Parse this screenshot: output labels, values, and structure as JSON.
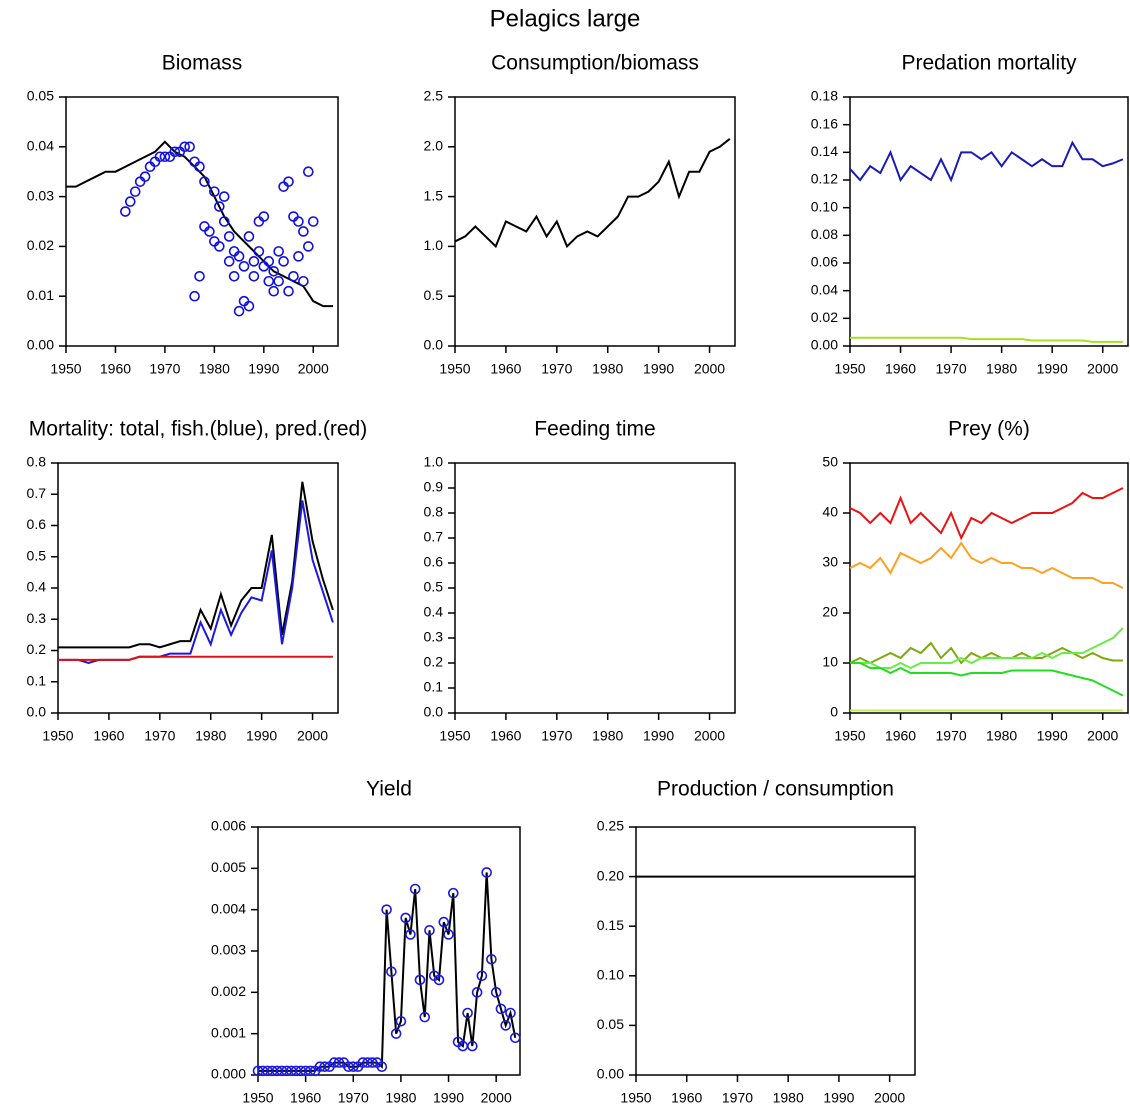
{
  "title": "Pelagics large",
  "chart_data": [
    {
      "type": "line",
      "title": "Biomass",
      "x": [
        1950,
        1952,
        1954,
        1956,
        1958,
        1960,
        1962,
        1964,
        1966,
        1968,
        1970,
        1972,
        1974,
        1976,
        1978,
        1980,
        1982,
        1984,
        1986,
        1988,
        1990,
        1992,
        1994,
        1996,
        1998,
        2000,
        2002,
        2004
      ],
      "series": [
        {
          "color": "#000000",
          "mode": "lines",
          "values": [
            0.032,
            0.032,
            0.033,
            0.034,
            0.035,
            0.035,
            0.036,
            0.037,
            0.038,
            0.039,
            0.041,
            0.039,
            0.038,
            0.036,
            0.034,
            0.03,
            0.026,
            0.023,
            0.021,
            0.019,
            0.017,
            0.015,
            0.014,
            0.013,
            0.012,
            0.009,
            0.008,
            0.008
          ]
        },
        {
          "color": "#1010e0",
          "mode": "markers",
          "x": [
            1962,
            1963,
            1964,
            1965,
            1966,
            1967,
            1968,
            1969,
            1970,
            1971,
            1972,
            1973,
            1974,
            1975,
            1976,
            1976,
            1977,
            1977,
            1978,
            1978,
            1979,
            1980,
            1980,
            1981,
            1981,
            1982,
            1982,
            1983,
            1983,
            1984,
            1984,
            1985,
            1985,
            1986,
            1986,
            1987,
            1987,
            1988,
            1988,
            1989,
            1989,
            1990,
            1990,
            1991,
            1991,
            1992,
            1992,
            1993,
            1993,
            1994,
            1994,
            1995,
            1995,
            1996,
            1996,
            1997,
            1997,
            1998,
            1998,
            1999,
            1999,
            2000
          ],
          "values": [
            0.027,
            0.029,
            0.031,
            0.033,
            0.034,
            0.036,
            0.037,
            0.038,
            0.038,
            0.038,
            0.039,
            0.039,
            0.04,
            0.04,
            0.037,
            0.01,
            0.014,
            0.036,
            0.033,
            0.024,
            0.023,
            0.031,
            0.021,
            0.028,
            0.02,
            0.025,
            0.03,
            0.022,
            0.017,
            0.014,
            0.019,
            0.007,
            0.018,
            0.009,
            0.016,
            0.008,
            0.022,
            0.017,
            0.014,
            0.025,
            0.019,
            0.026,
            0.016,
            0.017,
            0.013,
            0.011,
            0.015,
            0.019,
            0.013,
            0.032,
            0.017,
            0.033,
            0.011,
            0.026,
            0.014,
            0.018,
            0.025,
            0.013,
            0.023,
            0.035,
            0.02,
            0.025
          ]
        }
      ],
      "xlim": [
        1950,
        2005
      ],
      "xticks": [
        1950,
        1960,
        1970,
        1980,
        1990,
        2000
      ],
      "ylim": [
        0,
        0.05
      ],
      "yticks": [
        {
          "value": 0,
          "label": "0.00"
        },
        0.01,
        0.02,
        0.03,
        0.04,
        0.05
      ]
    },
    {
      "type": "line",
      "title": "Consumption/biomass",
      "x": [
        1950,
        1952,
        1954,
        1956,
        1958,
        1960,
        1962,
        1964,
        1966,
        1968,
        1970,
        1972,
        1974,
        1976,
        1978,
        1980,
        1982,
        1984,
        1986,
        1988,
        1990,
        1992,
        1994,
        1996,
        1998,
        2000,
        2002,
        2004
      ],
      "series": [
        {
          "color": "#000000",
          "mode": "lines",
          "values": [
            1.05,
            1.1,
            1.2,
            1.1,
            1.0,
            1.25,
            1.2,
            1.15,
            1.3,
            1.1,
            1.25,
            1.0,
            1.1,
            1.15,
            1.1,
            1.2,
            1.3,
            1.5,
            1.5,
            1.55,
            1.65,
            1.85,
            1.5,
            1.75,
            1.75,
            1.95,
            2.0,
            2.08
          ]
        }
      ],
      "xlim": [
        1950,
        2005
      ],
      "xticks": [
        1950,
        1960,
        1970,
        1980,
        1990,
        2000
      ],
      "ylim": [
        0,
        2.5
      ],
      "yticks": [
        {
          "value": 0,
          "label": "0.0"
        },
        0.5,
        {
          "value": 1,
          "label": "1.0"
        },
        1.5,
        {
          "value": 2,
          "label": "2.0"
        },
        2.5
      ]
    },
    {
      "type": "line",
      "title": "Predation mortality",
      "x": [
        1950,
        1952,
        1954,
        1956,
        1958,
        1960,
        1962,
        1964,
        1966,
        1968,
        1970,
        1972,
        1974,
        1976,
        1978,
        1980,
        1982,
        1984,
        1986,
        1988,
        1990,
        1992,
        1994,
        1996,
        1998,
        2000,
        2002,
        2004
      ],
      "series": [
        {
          "color": "#1a1ab8",
          "mode": "lines",
          "values": [
            0.128,
            0.12,
            0.13,
            0.125,
            0.14,
            0.12,
            0.13,
            0.125,
            0.12,
            0.135,
            0.12,
            0.14,
            0.14,
            0.135,
            0.14,
            0.13,
            0.14,
            0.135,
            0.13,
            0.135,
            0.13,
            0.13,
            0.147,
            0.135,
            0.135,
            0.13,
            0.132,
            0.135
          ]
        },
        {
          "color": "#a8e020",
          "mode": "lines",
          "values": [
            0.006,
            0.006,
            0.006,
            0.006,
            0.006,
            0.006,
            0.006,
            0.006,
            0.006,
            0.006,
            0.006,
            0.006,
            0.005,
            0.005,
            0.005,
            0.005,
            0.005,
            0.005,
            0.004,
            0.004,
            0.004,
            0.004,
            0.004,
            0.004,
            0.003,
            0.003,
            0.003,
            0.003
          ]
        }
      ],
      "xlim": [
        1950,
        2005
      ],
      "xticks": [
        1950,
        1960,
        1970,
        1980,
        1990,
        2000
      ],
      "ylim": [
        0,
        0.18
      ],
      "yticks": [
        {
          "value": 0,
          "label": "0.00"
        },
        0.02,
        0.04,
        0.06,
        0.08,
        {
          "value": 0.1,
          "label": "0.10"
        },
        0.12,
        0.14,
        0.16,
        0.18
      ]
    },
    {
      "type": "line",
      "title": "Mortality: total, fish.(blue), pred.(red)",
      "x": [
        1950,
        1952,
        1954,
        1956,
        1958,
        1960,
        1962,
        1964,
        1966,
        1968,
        1970,
        1972,
        1974,
        1976,
        1978,
        1980,
        1982,
        1984,
        1986,
        1988,
        1990,
        1992,
        1994,
        1996,
        1998,
        2000,
        2002,
        2004
      ],
      "series": [
        {
          "color": "#000000",
          "mode": "lines",
          "values": [
            0.21,
            0.21,
            0.21,
            0.21,
            0.21,
            0.21,
            0.21,
            0.21,
            0.22,
            0.22,
            0.21,
            0.22,
            0.23,
            0.23,
            0.33,
            0.27,
            0.38,
            0.28,
            0.36,
            0.4,
            0.4,
            0.57,
            0.25,
            0.42,
            0.74,
            0.55,
            0.43,
            0.33
          ]
        },
        {
          "color": "#1a1ae0",
          "mode": "lines",
          "values": [
            0.17,
            0.17,
            0.17,
            0.16,
            0.17,
            0.17,
            0.17,
            0.17,
            0.18,
            0.18,
            0.18,
            0.19,
            0.19,
            0.19,
            0.29,
            0.22,
            0.33,
            0.25,
            0.32,
            0.37,
            0.36,
            0.52,
            0.22,
            0.4,
            0.68,
            0.49,
            0.39,
            0.29
          ]
        },
        {
          "color": "#e01010",
          "mode": "lines",
          "values": [
            0.17,
            0.17,
            0.17,
            0.17,
            0.17,
            0.17,
            0.17,
            0.17,
            0.18,
            0.18,
            0.18,
            0.18,
            0.18,
            0.18,
            0.18,
            0.18,
            0.18,
            0.18,
            0.18,
            0.18,
            0.18,
            0.18,
            0.18,
            0.18,
            0.18,
            0.18,
            0.18,
            0.18
          ]
        }
      ],
      "xlim": [
        1950,
        2005
      ],
      "xticks": [
        1950,
        1960,
        1970,
        1980,
        1990,
        2000
      ],
      "ylim": [
        0,
        0.8
      ],
      "yticks": [
        {
          "value": 0,
          "label": "0.0"
        },
        0.1,
        0.2,
        0.3,
        0.4,
        0.5,
        0.6,
        0.7,
        0.8
      ]
    },
    {
      "type": "line",
      "title": "Feeding time",
      "x": [],
      "series": [],
      "xlim": [
        1950,
        2005
      ],
      "xticks": [
        1950,
        1960,
        1970,
        1980,
        1990,
        2000
      ],
      "ylim": [
        0,
        1
      ],
      "yticks": [
        {
          "value": 0,
          "label": "0.0"
        },
        0.1,
        0.2,
        0.3,
        0.4,
        0.5,
        0.6,
        0.7,
        0.8,
        0.9,
        {
          "value": 1,
          "label": "1.0"
        }
      ]
    },
    {
      "type": "line",
      "title": "Prey (%)",
      "x": [
        1950,
        1952,
        1954,
        1956,
        1958,
        1960,
        1962,
        1964,
        1966,
        1968,
        1970,
        1972,
        1974,
        1976,
        1978,
        1980,
        1982,
        1984,
        1986,
        1988,
        1990,
        1992,
        1994,
        1996,
        1998,
        2000,
        2002,
        2004
      ],
      "series": [
        {
          "color": "#ee1111",
          "mode": "lines",
          "values": [
            41,
            40,
            38,
            40,
            38,
            43,
            38,
            40,
            38,
            36,
            40,
            35,
            39,
            38,
            40,
            39,
            38,
            39,
            40,
            40,
            40,
            41,
            42,
            44,
            43,
            43,
            44,
            45
          ]
        },
        {
          "color": "#ffa020",
          "mode": "lines",
          "values": [
            29,
            30,
            29,
            31,
            28,
            32,
            31,
            30,
            31,
            33,
            31,
            34,
            31,
            30,
            31,
            30,
            30,
            29,
            29,
            28,
            29,
            28,
            27,
            27,
            27,
            26,
            26,
            25
          ]
        },
        {
          "color": "#7aaa10",
          "mode": "lines",
          "values": [
            10,
            11,
            10,
            11,
            12,
            11,
            13,
            12,
            14,
            11,
            13,
            10,
            12,
            11,
            12,
            11,
            11,
            12,
            11,
            11,
            12,
            13,
            12,
            11,
            12,
            11,
            10.5,
            10.5
          ]
        },
        {
          "color": "#66ee44",
          "mode": "lines",
          "values": [
            10,
            10,
            10,
            9,
            9,
            10,
            9,
            10,
            10,
            10,
            10,
            11,
            10,
            11,
            11,
            11,
            11,
            11,
            11,
            12,
            11,
            12,
            12,
            12,
            13,
            14,
            15,
            17
          ]
        },
        {
          "color": "#22dd22",
          "mode": "lines",
          "values": [
            10,
            10,
            9,
            9,
            8,
            9,
            8,
            8,
            8,
            8,
            8,
            7.5,
            8,
            8,
            8,
            8,
            8.5,
            8.5,
            8.5,
            8.5,
            8.5,
            8,
            7.5,
            7,
            6.5,
            5.5,
            4.5,
            3.5
          ]
        },
        {
          "color": "#c8e860",
          "mode": "lines",
          "values": [
            0.5,
            0.5,
            0.5,
            0.5,
            0.5,
            0.5,
            0.5,
            0.5,
            0.5,
            0.5,
            0.5,
            0.5,
            0.5,
            0.5,
            0.5,
            0.5,
            0.5,
            0.5,
            0.5,
            0.5,
            0.5,
            0.5,
            0.5,
            0.5,
            0.5,
            0.5,
            0.5,
            0.5
          ]
        }
      ],
      "xlim": [
        1950,
        2005
      ],
      "xticks": [
        1950,
        1960,
        1970,
        1980,
        1990,
        2000
      ],
      "ylim": [
        0,
        50
      ],
      "yticks": [
        0,
        10,
        20,
        30,
        40,
        50
      ]
    },
    {
      "type": "line",
      "title": "Yield",
      "x": [
        1950,
        1951,
        1952,
        1953,
        1954,
        1955,
        1956,
        1957,
        1958,
        1959,
        1960,
        1961,
        1962,
        1963,
        1964,
        1965,
        1966,
        1967,
        1968,
        1969,
        1970,
        1971,
        1972,
        1973,
        1974,
        1975,
        1976,
        1977,
        1978,
        1979,
        1980,
        1981,
        1982,
        1983,
        1984,
        1985,
        1986,
        1987,
        1988,
        1989,
        1990,
        1991,
        1992,
        1993,
        1994,
        1995,
        1996,
        1997,
        1998,
        1999,
        2000,
        2001,
        2002,
        2003,
        2004
      ],
      "series": [
        {
          "color": "#000000",
          "marker_color": "#1a1ae0",
          "mode": "lines+markers",
          "values": [
            0.0001,
            0.0001,
            0.0001,
            0.0001,
            0.0001,
            0.0001,
            0.0001,
            0.0001,
            0.0001,
            0.0001,
            0.0001,
            0.0001,
            0.0001,
            0.0002,
            0.0002,
            0.0002,
            0.0003,
            0.0003,
            0.0003,
            0.0002,
            0.0002,
            0.0002,
            0.0003,
            0.0003,
            0.0003,
            0.0003,
            0.0002,
            0.004,
            0.0025,
            0.001,
            0.0013,
            0.0038,
            0.0034,
            0.0045,
            0.0023,
            0.0014,
            0.0035,
            0.0024,
            0.0023,
            0.0037,
            0.0034,
            0.0044,
            0.0008,
            0.0007,
            0.0015,
            0.0007,
            0.002,
            0.0024,
            0.0049,
            0.0028,
            0.002,
            0.0016,
            0.0012,
            0.0015,
            0.0009
          ]
        }
      ],
      "xlim": [
        1950,
        2005
      ],
      "xticks": [
        1950,
        1960,
        1970,
        1980,
        1990,
        2000
      ],
      "ylim": [
        0,
        0.006
      ],
      "yticks": [
        {
          "value": 0,
          "label": "0.000"
        },
        0.001,
        0.002,
        0.003,
        0.004,
        0.005,
        0.006
      ]
    },
    {
      "type": "line",
      "title": "Production / consumption",
      "x": [
        1950,
        2005
      ],
      "series": [
        {
          "color": "#000000",
          "mode": "lines",
          "values": [
            0.2,
            0.2
          ]
        }
      ],
      "xlim": [
        1950,
        2005
      ],
      "xticks": [
        1950,
        1960,
        1970,
        1980,
        1990,
        2000
      ],
      "ylim": [
        0,
        0.25
      ],
      "yticks": [
        {
          "value": 0,
          "label": "0.00"
        },
        0.05,
        {
          "value": 0.1,
          "label": "0.10"
        },
        0.15,
        {
          "value": 0.2,
          "label": "0.20"
        },
        0.25
      ]
    }
  ]
}
